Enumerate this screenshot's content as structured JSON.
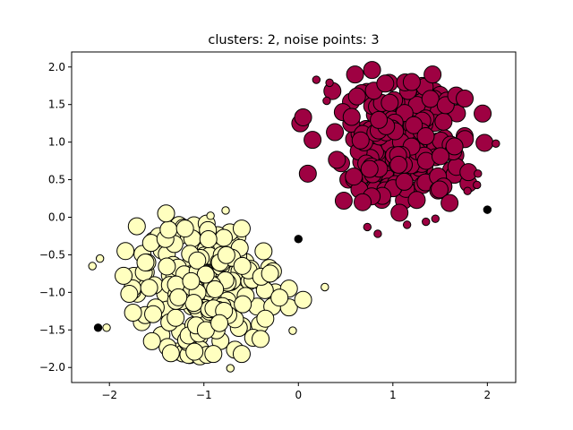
{
  "chart_data": {
    "type": "scatter",
    "title": "clusters: 2, noise points: 3",
    "xlabel": "",
    "ylabel": "",
    "xlim": [
      -2.4,
      2.3
    ],
    "ylim": [
      -2.2,
      2.2
    ],
    "xticks": [
      -2,
      -1,
      0,
      1,
      2
    ],
    "xtick_labels": [
      "−2",
      "−1",
      "0",
      "1",
      "2"
    ],
    "yticks": [
      -2.0,
      -1.5,
      -1.0,
      -0.5,
      0.0,
      0.5,
      1.0,
      1.5,
      2.0
    ],
    "ytick_labels": [
      "−2.0",
      "−1.5",
      "−1.0",
      "−0.5",
      "0.0",
      "0.5",
      "1.0",
      "1.5",
      "2.0"
    ],
    "grid": false,
    "series": [
      {
        "color": "#9e0142",
        "core_center": [
          1.07,
          1.0
        ],
        "core_spread": [
          0.33,
          0.38
        ],
        "core_count": 230,
        "border_points": [
          [
            0.19,
            1.83
          ],
          [
            0.33,
            1.79
          ],
          [
            1.9,
            0.58
          ],
          [
            1.89,
            0.43
          ],
          [
            2.09,
            0.98
          ],
          [
            0.73,
            -0.13
          ],
          [
            0.84,
            -0.22
          ],
          [
            1.15,
            -0.1
          ],
          [
            1.35,
            -0.06
          ],
          [
            1.45,
            -0.02
          ],
          [
            1.79,
            0.35
          ],
          [
            0.3,
            1.55
          ]
        ],
        "edge_points": [
          [
            0.6,
            1.9
          ],
          [
            0.78,
            1.96
          ],
          [
            1.42,
            1.9
          ],
          [
            1.67,
            1.62
          ],
          [
            1.76,
            1.58
          ],
          [
            0.02,
            1.25
          ],
          [
            0.05,
            1.33
          ],
          [
            1.95,
            1.38
          ],
          [
            1.97,
            0.99
          ],
          [
            0.1,
            0.58
          ],
          [
            0.48,
            0.22
          ],
          [
            0.68,
            0.2
          ],
          [
            1.07,
            0.06
          ],
          [
            1.6,
            0.19
          ],
          [
            1.8,
            0.45
          ],
          [
            1.8,
            0.6
          ],
          [
            0.15,
            1.03
          ],
          [
            1.2,
            1.8
          ],
          [
            0.36,
            1.68
          ]
        ]
      },
      {
        "color": "#ffffbf",
        "core_center": [
          -1.0,
          -0.95
        ],
        "core_spread": [
          0.36,
          0.43
        ],
        "core_count": 215,
        "border_points": [
          [
            -2.18,
            -0.65
          ],
          [
            -2.1,
            -0.55
          ],
          [
            -2.03,
            -1.47
          ],
          [
            -0.77,
            0.09
          ],
          [
            -0.72,
            -2.01
          ],
          [
            -0.06,
            -1.51
          ],
          [
            0.28,
            -0.93
          ],
          [
            -0.93,
            0.02
          ]
        ],
        "edge_points": [
          [
            -1.71,
            -0.12
          ],
          [
            -1.4,
            0.05
          ],
          [
            -1.83,
            -0.45
          ],
          [
            -1.85,
            -0.78
          ],
          [
            -1.79,
            -1.02
          ],
          [
            -1.75,
            -1.27
          ],
          [
            -1.55,
            -1.65
          ],
          [
            -1.35,
            -1.81
          ],
          [
            -1.1,
            -1.79
          ],
          [
            -0.9,
            -1.82
          ],
          [
            -0.6,
            -1.82
          ],
          [
            -0.4,
            -1.62
          ],
          [
            -0.35,
            -1.35
          ],
          [
            -0.1,
            -1.2
          ],
          [
            0.05,
            -1.1
          ],
          [
            -0.1,
            -0.95
          ],
          [
            -0.3,
            -0.75
          ],
          [
            -0.6,
            -0.15
          ],
          [
            -1.2,
            -0.15
          ],
          [
            -0.2,
            -1.07
          ]
        ]
      },
      {
        "color": "#000000",
        "points": [
          [
            0.0,
            -0.29
          ],
          [
            2.0,
            0.1
          ],
          [
            -2.12,
            -1.47
          ]
        ]
      }
    ]
  }
}
